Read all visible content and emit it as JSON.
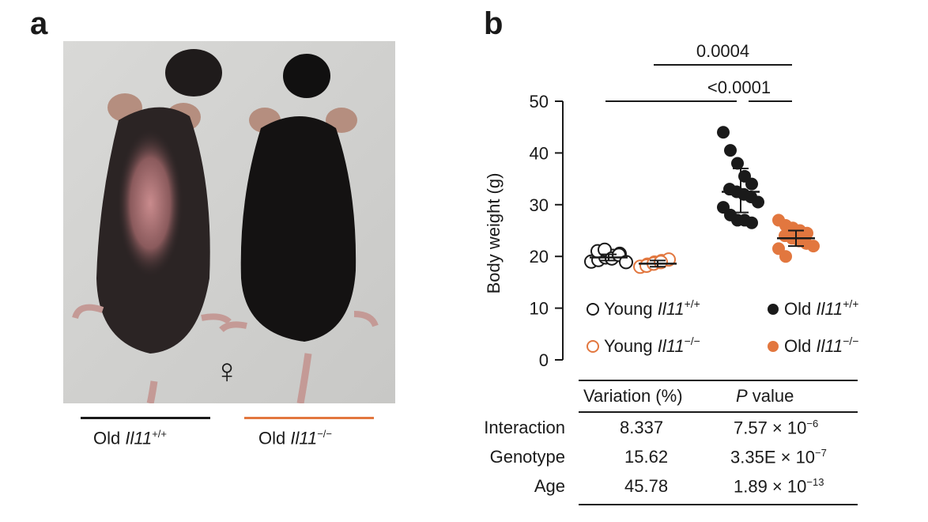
{
  "panels": {
    "a": "a",
    "b": "b"
  },
  "photo": {
    "symbol": "♀",
    "subjects": [
      {
        "genotype": "Old Il11+/+",
        "label_text": "Old ",
        "gene": "Il11",
        "sup": "+/+",
        "color": "#1a1a1a"
      },
      {
        "genotype": "Old Il11−/−",
        "label_text": "Old ",
        "gene": "Il11",
        "sup": "−/−",
        "color": "#e2773f"
      }
    ]
  },
  "chart_data": {
    "type": "scatter",
    "ylabel": "Body weight (g)",
    "ylim": [
      0,
      50
    ],
    "yticks": [
      0,
      10,
      20,
      30,
      40,
      50
    ],
    "groups": [
      {
        "name": "Young Il11+/+",
        "name_prefix": "Young ",
        "gene": "Il11",
        "sup": "+/+",
        "fill": "none",
        "color": "#1a1a1a",
        "mean": 19.8,
        "err": [
          19.2,
          20.4
        ],
        "points": [
          19.0,
          19.3,
          19.8,
          20.1,
          20.5,
          21.0,
          21.3,
          19.6,
          20.3,
          18.9
        ]
      },
      {
        "name": "Young Il11−/−",
        "name_prefix": "Young ",
        "gene": "Il11",
        "sup": "−/−",
        "fill": "none",
        "color": "#e2773f",
        "mean": 18.6,
        "err": [
          18.0,
          19.2
        ],
        "points": [
          18.0,
          18.4,
          18.8,
          19.1,
          19.4,
          18.2,
          18.6,
          18.9
        ]
      },
      {
        "name": "Old Il11+/+",
        "name_prefix": "Old ",
        "gene": "Il11",
        "sup": "+/+",
        "fill": "solid",
        "color": "#1a1a1a",
        "mean": 32.5,
        "err": [
          28.5,
          37.0
        ],
        "points": [
          44.0,
          40.5,
          38.0,
          35.5,
          34.0,
          33.0,
          32.5,
          32.0,
          31.5,
          30.5,
          29.5,
          28.0,
          27.0,
          27.0,
          26.5
        ]
      },
      {
        "name": "Old Il11−/−",
        "name_prefix": "Old ",
        "gene": "Il11",
        "sup": "−/−",
        "fill": "solid",
        "color": "#e2773f",
        "mean": 23.5,
        "err": [
          22.0,
          25.0
        ],
        "points": [
          27.0,
          26.0,
          25.5,
          25.0,
          24.5,
          24.0,
          23.5,
          23.0,
          22.5,
          22.0,
          21.5,
          20.0
        ]
      }
    ],
    "comparisons": [
      {
        "label": "0.0004",
        "from": 1,
        "to": 3
      },
      {
        "label": "<0.0001",
        "from": 0,
        "to": 2
      },
      {
        "label": "",
        "from": 2,
        "to": 3
      }
    ]
  },
  "stats_table": {
    "headers": [
      "Variation (%)",
      "P value"
    ],
    "header_p": "P",
    "header_p_rest": " value",
    "rows": [
      {
        "label": "Interaction",
        "variation": "8.337",
        "p_base": "7.57 × 10",
        "p_exp": "−6"
      },
      {
        "label": "Genotype",
        "variation": "15.62",
        "p_base": "3.35E × 10",
        "p_exp": "−7"
      },
      {
        "label": "Age",
        "variation": "45.78",
        "p_base": "1.89 × 10",
        "p_exp": "−13"
      }
    ]
  }
}
